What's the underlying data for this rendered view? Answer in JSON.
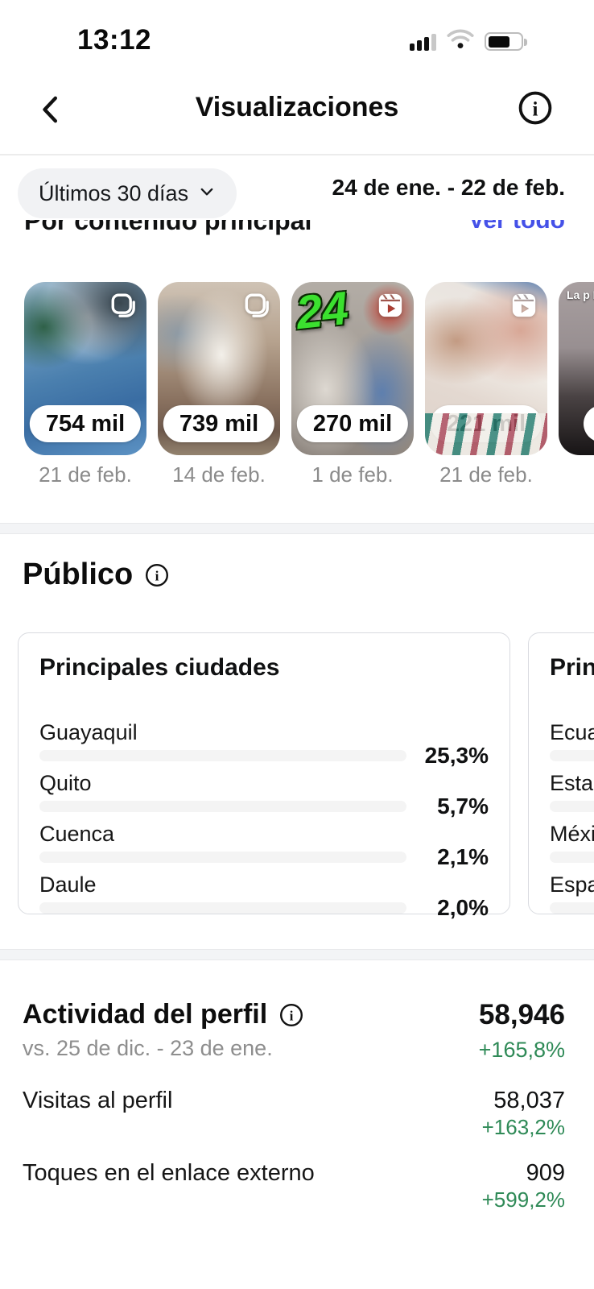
{
  "status_bar": {
    "time": "13:12"
  },
  "header": {
    "title": "Visualizaciones"
  },
  "filter": {
    "range_label": "Últimos 30 días",
    "date_range": "24 de ene. - 22 de feb."
  },
  "top_content": {
    "section_title": "Por contenido principal",
    "see_all": "Ver todo",
    "items": [
      {
        "views": "754 mil",
        "date": "21 de feb.",
        "type": "carousel"
      },
      {
        "views": "739 mil",
        "date": "14 de feb.",
        "type": "carousel"
      },
      {
        "views": "270 mil",
        "date": "1 de feb.",
        "type": "reel",
        "overlay": "24"
      },
      {
        "views": "221 mil",
        "date": "21 de feb.",
        "type": "reel"
      },
      {
        "views": "",
        "date": "",
        "type": "reel",
        "overlay_caption": "La p Bun"
      }
    ]
  },
  "audience": {
    "section_title": "Público",
    "cards": [
      {
        "title": "Principales ciudades",
        "rows": [
          {
            "label": "Guayaquil",
            "value": "25,3%",
            "percent": 25.3
          },
          {
            "label": "Quito",
            "value": "5,7%",
            "percent": 5.7
          },
          {
            "label": "Cuenca",
            "value": "2,1%",
            "percent": 2.1
          },
          {
            "label": "Daule",
            "value": "2,0%",
            "percent": 2.0
          }
        ]
      },
      {
        "title": "Prin",
        "rows": [
          {
            "label": "Ecua",
            "value": "",
            "percent": 75
          },
          {
            "label": "Esta",
            "value": "",
            "percent": 4.5
          },
          {
            "label": "Méxi",
            "value": "",
            "percent": 3.5
          },
          {
            "label": "Espa",
            "value": "",
            "percent": 2.2
          }
        ]
      }
    ]
  },
  "profile_activity": {
    "title": "Actividad del perfil",
    "comparison": "vs. 25 de dic. - 23 de ene.",
    "total": "58,946",
    "total_change": "+165,8%",
    "rows": [
      {
        "label": "Visitas al perfil",
        "value": "58,037",
        "change": "+163,2%"
      },
      {
        "label": "Toques en el enlace externo",
        "value": "909",
        "change": "+599,2%"
      }
    ]
  },
  "colors": {
    "accent_magenta": "#c913b9",
    "positive_green": "#2f8a57",
    "link_blue": "#4551e8"
  }
}
